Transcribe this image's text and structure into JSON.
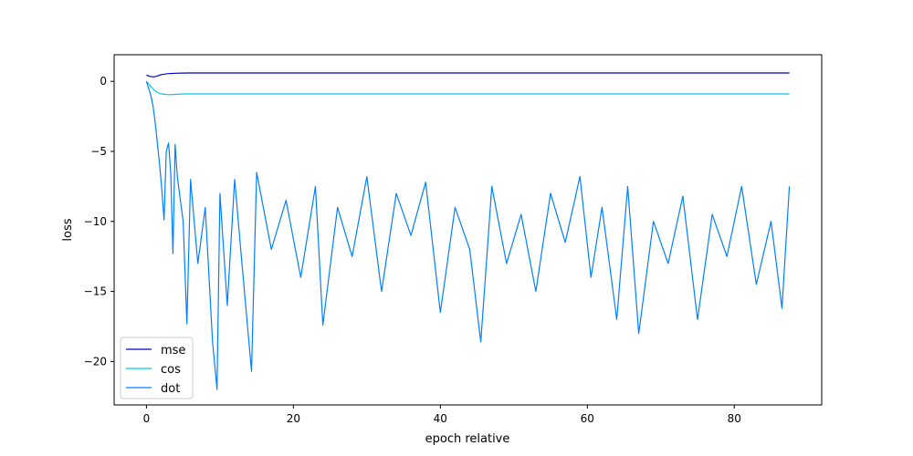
{
  "chart_data": {
    "type": "line",
    "title": "",
    "xlabel": "epoch relative",
    "ylabel": "loss",
    "xlim": [
      -4.4,
      91.9
    ],
    "ylim": [
      -23.1,
      1.9
    ],
    "xticks": [
      0,
      20,
      40,
      60,
      80
    ],
    "yticks": [
      0,
      -5,
      -10,
      -15,
      -20
    ],
    "grid": false,
    "legend_position": "lower-left",
    "series": [
      {
        "name": "mse",
        "color": "#0000cd",
        "x": [
          0,
          0.5,
          1,
          1.5,
          2,
          3,
          4,
          5,
          6,
          8,
          10,
          15,
          20,
          30,
          40,
          50,
          60,
          70,
          80,
          87.5
        ],
        "y": [
          0.45,
          0.35,
          0.32,
          0.38,
          0.48,
          0.55,
          0.58,
          0.59,
          0.6,
          0.6,
          0.6,
          0.6,
          0.6,
          0.6,
          0.6,
          0.6,
          0.6,
          0.6,
          0.6,
          0.6
        ]
      },
      {
        "name": "cos",
        "color": "#00c8f0",
        "x": [
          0,
          0.5,
          1,
          1.5,
          2,
          3,
          4,
          5,
          6,
          8,
          10,
          15,
          20,
          30,
          40,
          50,
          60,
          70,
          80,
          87.5
        ],
        "y": [
          0.0,
          -0.3,
          -0.6,
          -0.8,
          -0.9,
          -0.95,
          -0.93,
          -0.9,
          -0.9,
          -0.9,
          -0.9,
          -0.9,
          -0.9,
          -0.9,
          -0.9,
          -0.9,
          -0.9,
          -0.9,
          -0.9,
          -0.9
        ]
      },
      {
        "name": "dot",
        "color": "#0080ff",
        "x": [
          0,
          0.3,
          0.6,
          0.9,
          1.2,
          1.5,
          1.8,
          2.1,
          2.4,
          2.7,
          3.0,
          3.3,
          3.6,
          3.9,
          4.2,
          5.0,
          5.5,
          6.0,
          7.0,
          8.0,
          9.0,
          9.6,
          10.0,
          11.0,
          12.0,
          13.0,
          14.3,
          15.0,
          17.0,
          19.0,
          21.0,
          23.0,
          24.0,
          26.0,
          28.0,
          30.0,
          32.0,
          34.0,
          36.0,
          38.0,
          40.0,
          42.0,
          44.0,
          45.5,
          47.0,
          49.0,
          51.0,
          53.0,
          55.0,
          57.0,
          59.0,
          60.5,
          62.0,
          64.0,
          65.5,
          67.0,
          69.0,
          71.0,
          73.0,
          75.0,
          77.0,
          79.0,
          81.0,
          83.0,
          85.0,
          86.5,
          87.5
        ],
        "y": [
          0.0,
          -0.5,
          -1.0,
          -1.8,
          -3.0,
          -4.5,
          -6.0,
          -7.8,
          -9.9,
          -5.0,
          -4.4,
          -6.5,
          -12.3,
          -4.5,
          -6.8,
          -10.0,
          -17.3,
          -7.0,
          -13.0,
          -9.0,
          -18.6,
          -22.0,
          -8.0,
          -16.0,
          -7.0,
          -13.0,
          -20.7,
          -6.5,
          -12.0,
          -8.5,
          -14.0,
          -7.5,
          -17.4,
          -9.0,
          -12.5,
          -6.8,
          -15.0,
          -8.0,
          -11.0,
          -7.2,
          -16.5,
          -9.0,
          -12.0,
          -18.6,
          -7.5,
          -13.0,
          -9.5,
          -15.0,
          -8.0,
          -11.5,
          -6.8,
          -14.0,
          -9.0,
          -17.0,
          -7.5,
          -18.0,
          -10.0,
          -13.0,
          -8.2,
          -17.0,
          -9.5,
          -12.5,
          -7.5,
          -14.5,
          -10.0,
          -16.2,
          -7.5
        ]
      }
    ]
  }
}
